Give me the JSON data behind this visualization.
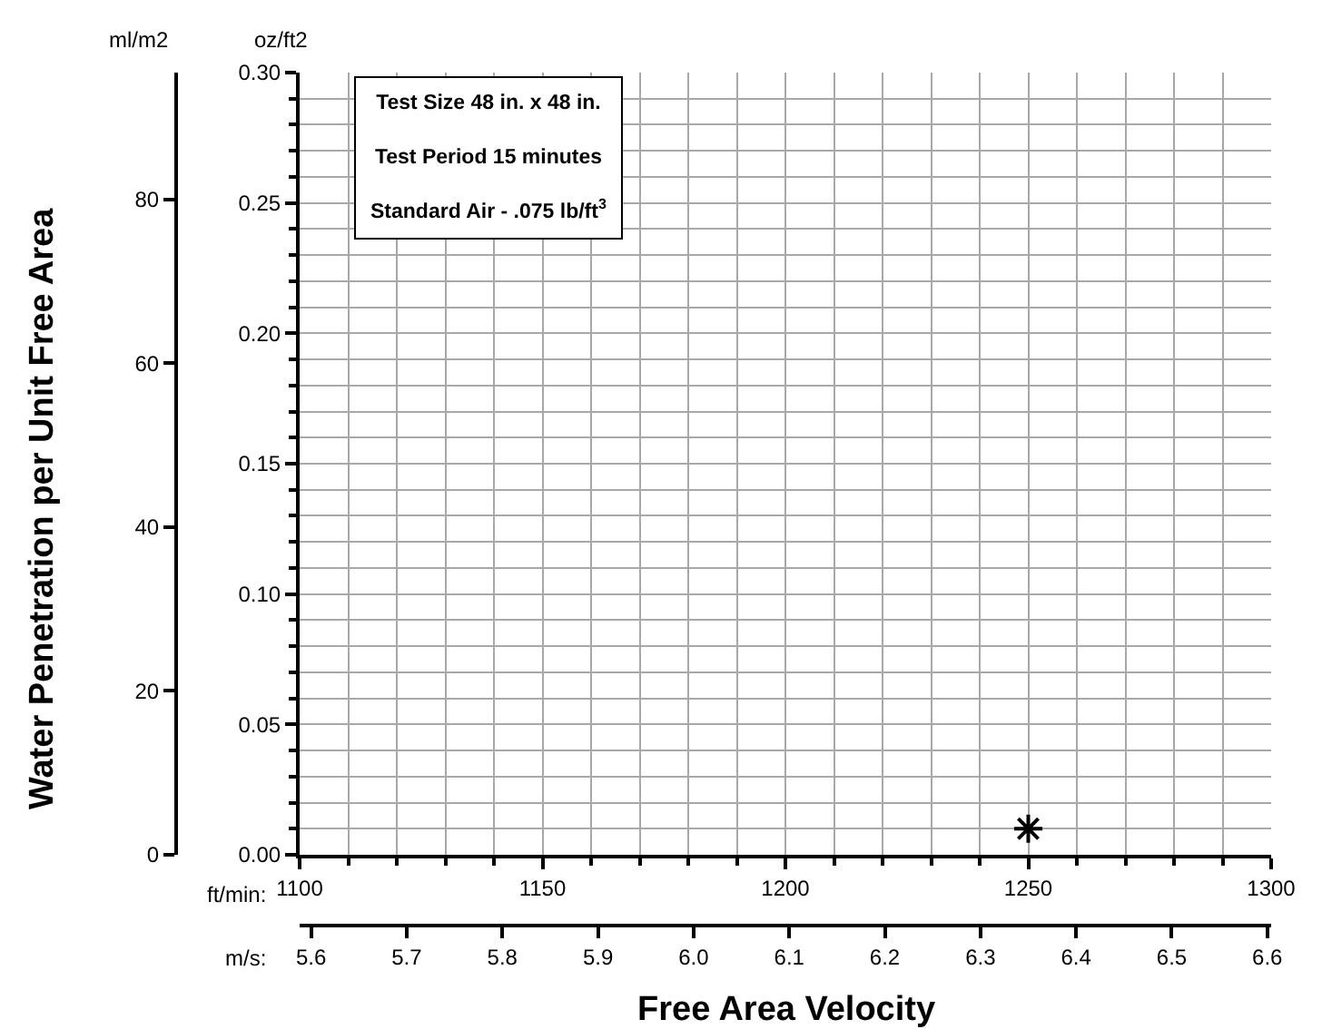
{
  "chart_data": {
    "type": "scatter",
    "xlabel": "Free Area Velocity",
    "ylabel": "oz/ft2",
    "y2label": "ml/m2",
    "x2label": "m/s:",
    "annotations": [
      "Test Size 48 in. x 48 in.",
      "Test Period 15 minutes",
      "Standard Air - .075 lb/ft$^{3}$",
      "ft/min:",
      "Water Penetration per Unit Free Area"
    ],
    "series": [
      {
        "color": "#000000",
        "x": [
          1250
        ],
        "values": [
          0.01
        ]
      }
    ],
    "marker": "cross",
    "grid": true,
    "xlim": [
      1100,
      1300
    ],
    "xticks": [
      1100,
      {
        "value": 1110,
        "label": null
      },
      {
        "value": 1120,
        "label": null
      },
      {
        "value": 1130,
        "label": null
      },
      {
        "value": 1140,
        "label": null
      },
      1150,
      {
        "value": 1160,
        "label": null
      },
      {
        "value": 1170,
        "label": null
      },
      {
        "value": 1180,
        "label": null
      },
      {
        "value": 1190,
        "label": null
      },
      1200,
      {
        "value": 1210,
        "label": null
      },
      {
        "value": 1220,
        "label": null
      },
      {
        "value": 1230,
        "label": null
      },
      {
        "value": 1240,
        "label": null
      },
      1250,
      {
        "value": 1260,
        "label": null
      },
      {
        "value": 1270,
        "label": null
      },
      {
        "value": 1280,
        "label": null
      },
      {
        "value": 1290,
        "label": null
      },
      1300
    ],
    "ylim": [
      0,
      0.3
    ],
    "yticks": [
      {
        "value": 0,
        "label": "0.00"
      },
      {
        "value": 0.01,
        "label": null
      },
      {
        "value": 0.02,
        "label": null
      },
      {
        "value": 0.03,
        "label": null
      },
      {
        "value": 0.04,
        "label": null
      },
      0.05,
      {
        "value": 0.06,
        "label": null
      },
      {
        "value": 0.07,
        "label": null
      },
      {
        "value": 0.08,
        "label": null
      },
      {
        "value": 0.09,
        "label": null
      },
      {
        "value": 0.1,
        "label": "0.10"
      },
      {
        "value": 0.11,
        "label": null
      },
      {
        "value": 0.12,
        "label": null
      },
      {
        "value": 0.13,
        "label": null
      },
      {
        "value": 0.14,
        "label": null
      },
      0.15,
      {
        "value": 0.16,
        "label": null
      },
      {
        "value": 0.17,
        "label": null
      },
      {
        "value": 0.18,
        "label": null
      },
      {
        "value": 0.19,
        "label": null
      },
      {
        "value": 0.2,
        "label": "0.20"
      },
      {
        "value": 0.21,
        "label": null
      },
      {
        "value": 0.22,
        "label": null
      },
      {
        "value": 0.23,
        "label": null
      },
      {
        "value": 0.24,
        "label": null
      },
      0.25,
      {
        "value": 0.26,
        "label": null
      },
      {
        "value": 0.27,
        "label": null
      },
      {
        "value": 0.28,
        "label": null
      },
      {
        "value": 0.29,
        "label": null
      },
      {
        "value": 0.3,
        "label": "0.30"
      }
    ],
    "y2lim": [
      0,
      95.5
    ],
    "y2ticks": [
      0,
      20,
      40,
      60,
      80
    ],
    "x2lim": [
      5.588,
      6.604
    ],
    "x2ticks": [
      5.6,
      5.7,
      5.8,
      5.9,
      {
        "value": 6.0,
        "label": "6.0"
      },
      6.1,
      6.2,
      6.3,
      6.4,
      6.5,
      6.6
    ]
  }
}
